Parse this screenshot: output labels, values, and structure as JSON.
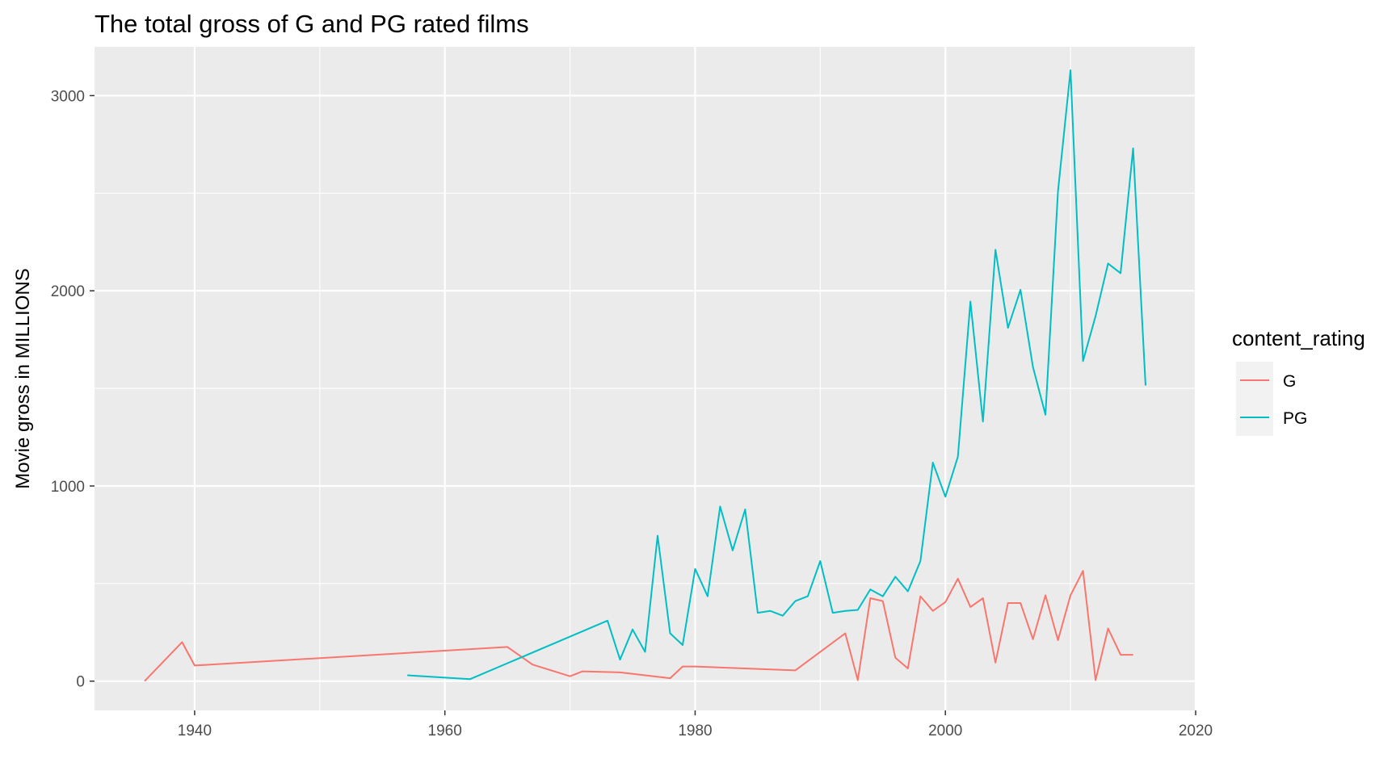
{
  "chart_data": {
    "type": "line",
    "title": "The total gross of G and PG rated films",
    "xlabel": "",
    "ylabel": "Movie gross in MILLIONS",
    "xlim": [
      1932,
      2020
    ],
    "ylim": [
      -150,
      3250
    ],
    "x_ticks": [
      1940,
      1960,
      1980,
      2000,
      2020
    ],
    "y_ticks": [
      0,
      1000,
      2000,
      3000
    ],
    "grid": true,
    "legend": {
      "title": "content_rating",
      "position": "right"
    },
    "series": [
      {
        "name": "G",
        "color": "#F8766D",
        "x": [
          1936,
          1939,
          1940,
          1965,
          1967,
          1970,
          1971,
          1974,
          1978,
          1979,
          1980,
          1988,
          1992,
          1993,
          1994,
          1995,
          1996,
          1997,
          1998,
          1999,
          2000,
          2001,
          2002,
          2003,
          2004,
          2005,
          2006,
          2007,
          2008,
          2009,
          2010,
          2011,
          2012,
          2013,
          2014,
          2015
        ],
        "y": [
          0,
          200,
          80,
          175,
          85,
          25,
          50,
          45,
          15,
          75,
          75,
          55,
          245,
          5,
          425,
          410,
          120,
          65,
          435,
          360,
          405,
          525,
          380,
          425,
          95,
          400,
          400,
          215,
          440,
          210,
          440,
          565,
          5,
          270,
          135,
          135
        ]
      },
      {
        "name": "PG",
        "color": "#00BFC4",
        "x": [
          1957,
          1962,
          1973,
          1974,
          1975,
          1976,
          1977,
          1978,
          1979,
          1980,
          1981,
          1982,
          1983,
          1984,
          1985,
          1986,
          1987,
          1988,
          1989,
          1990,
          1991,
          1992,
          1993,
          1994,
          1995,
          1996,
          1997,
          1998,
          1999,
          2000,
          2001,
          2002,
          2003,
          2004,
          2005,
          2006,
          2007,
          2008,
          2009,
          2010,
          2011,
          2012,
          2013,
          2014,
          2015,
          2016
        ],
        "y": [
          30,
          10,
          310,
          110,
          265,
          150,
          745,
          245,
          185,
          575,
          435,
          895,
          670,
          880,
          350,
          360,
          335,
          410,
          435,
          615,
          350,
          360,
          365,
          470,
          435,
          535,
          460,
          615,
          1120,
          945,
          1150,
          1945,
          1330,
          2210,
          1810,
          2005,
          1610,
          1365,
          2510,
          3130,
          1640,
          1870,
          2140,
          2090,
          2730,
          1515
        ]
      }
    ]
  }
}
